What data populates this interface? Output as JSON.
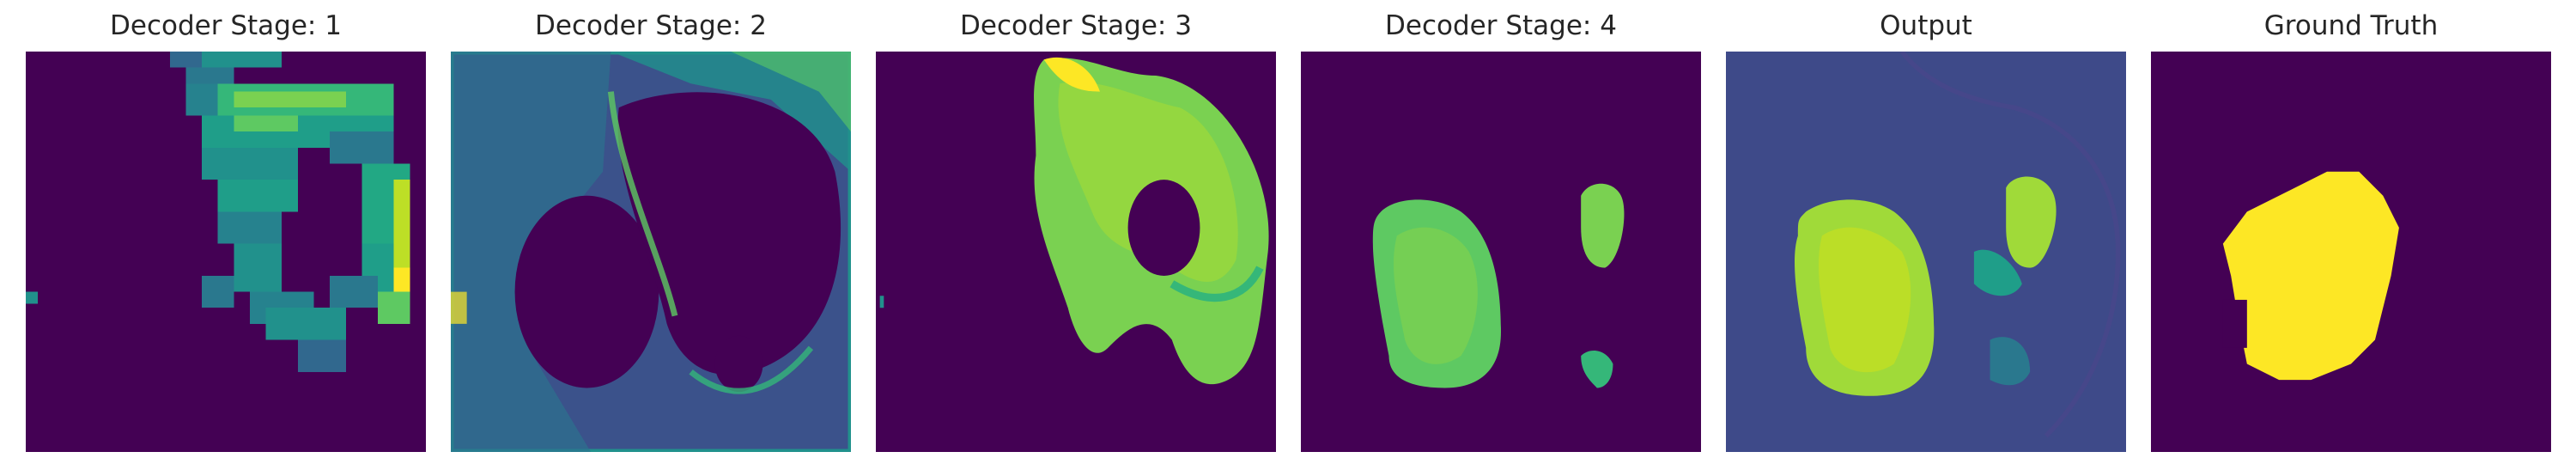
{
  "figure": {
    "panels": [
      {
        "title": "Decoder Stage: 1"
      },
      {
        "title": "Decoder Stage: 2"
      },
      {
        "title": "Decoder Stage: 3"
      },
      {
        "title": "Decoder Stage: 4"
      },
      {
        "title": "Output"
      },
      {
        "title": "Ground Truth"
      }
    ]
  },
  "colors": {
    "background_dark": "#440154",
    "teal": "#21918c",
    "green": "#5ec962",
    "yellow": "#fde725",
    "blue_gray": "#3b528b"
  }
}
